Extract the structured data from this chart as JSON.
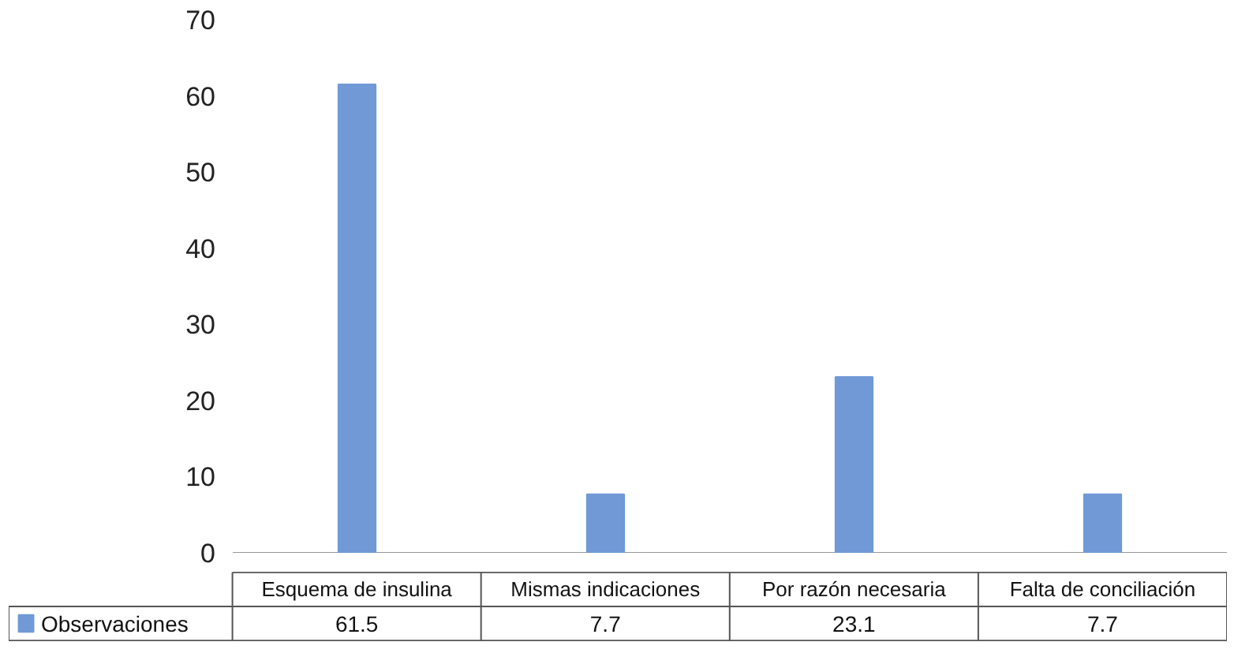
{
  "chart_data": {
    "type": "bar",
    "categories": [
      "Esquema de insulina",
      "Mismas indicaciones",
      "Por razón necesaria",
      "Falta de conciliación"
    ],
    "series": [
      {
        "name": "Observaciones",
        "color": "#7099d6",
        "values": [
          61.5,
          7.7,
          23.1,
          7.7
        ]
      }
    ],
    "ylim": [
      0,
      70
    ],
    "yticks": [
      0,
      10,
      20,
      30,
      40,
      50,
      60,
      70
    ],
    "grid": false,
    "legend": "bottom",
    "data_labels": true
  }
}
